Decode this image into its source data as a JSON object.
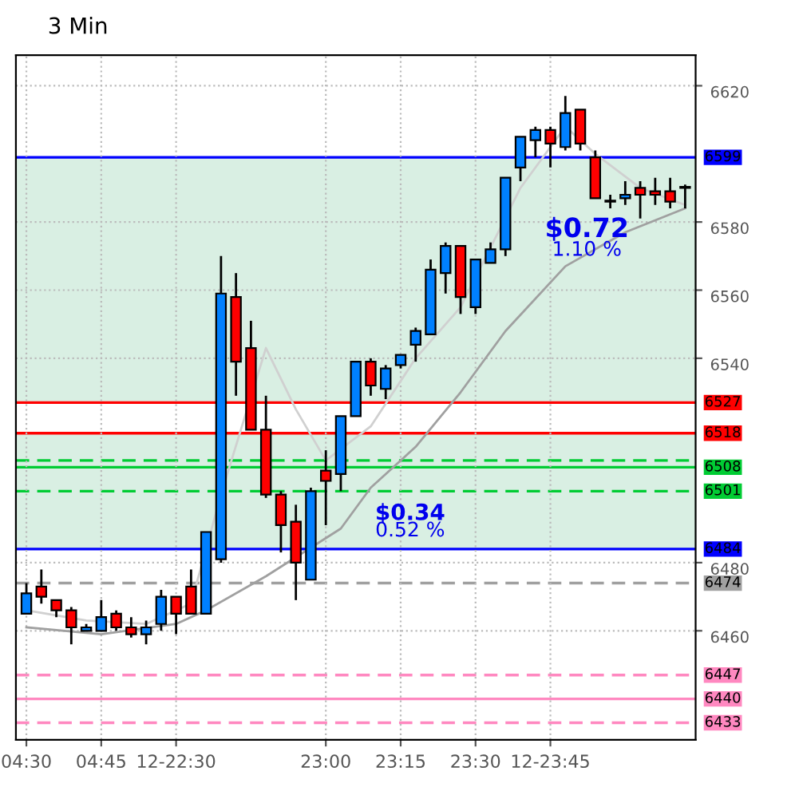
{
  "chart_data": {
    "type": "candlestick",
    "title": "3 Min",
    "categories": [
      "04:30",
      null,
      null,
      null,
      null,
      "04:45",
      null,
      null,
      null,
      null,
      "12-22:30",
      null,
      null,
      null,
      null,
      null,
      null,
      null,
      null,
      null,
      "23:00",
      null,
      null,
      null,
      null,
      "23:15",
      null,
      null,
      null,
      null,
      "23:30",
      null,
      null,
      null,
      null,
      "12-23:45",
      null,
      null,
      null,
      null,
      null,
      null,
      null,
      null,
      null
    ],
    "ohlc": [
      [
        6465,
        6474,
        6465,
        6471
      ],
      [
        6473,
        6478,
        6468,
        6470
      ],
      [
        6469,
        6469,
        6464,
        6466
      ],
      [
        6466,
        6467,
        6456,
        6461
      ],
      [
        6460,
        6462,
        6460,
        6461
      ],
      [
        6460,
        6469,
        6460,
        6464
      ],
      [
        6465,
        6466,
        6460,
        6461
      ],
      [
        6461,
        6464,
        6458,
        6459
      ],
      [
        6459,
        6463,
        6456,
        6461
      ],
      [
        6462,
        6472,
        6460,
        6470
      ],
      [
        6470,
        6470,
        6459,
        6465
      ],
      [
        6473,
        6478,
        6465,
        6465
      ],
      [
        6465,
        6489,
        6465,
        6489
      ],
      [
        6481,
        6570,
        6480,
        6559
      ],
      [
        6558,
        6565,
        6529,
        6539
      ],
      [
        6543,
        6551,
        6519,
        6519
      ],
      [
        6519,
        6529,
        6499,
        6500
      ],
      [
        6500,
        6501,
        6483,
        6491
      ],
      [
        6492,
        6497,
        6469,
        6480
      ],
      [
        6475,
        6502,
        6475,
        6501
      ],
      [
        6507,
        6513,
        6491,
        6504
      ],
      [
        6506,
        6523,
        6501,
        6523
      ],
      [
        6523,
        6539,
        6523,
        6539
      ],
      [
        6539,
        6540,
        6529,
        6532
      ],
      [
        6531,
        6538,
        6528,
        6537
      ],
      [
        6538,
        6541,
        6537,
        6541
      ],
      [
        6544,
        6549,
        6539,
        6548
      ],
      [
        6547,
        6569,
        6547,
        6566
      ],
      [
        6565,
        6574,
        6559,
        6573
      ],
      [
        6573,
        6573,
        6553,
        6558
      ],
      [
        6555,
        6569,
        6553,
        6569
      ],
      [
        6568,
        6574,
        6568,
        6572
      ],
      [
        6572,
        6593,
        6570,
        6593
      ],
      [
        6596,
        6605,
        6592,
        6605
      ],
      [
        6604,
        6608,
        6599,
        6607
      ],
      [
        6607,
        6608,
        6596,
        6603
      ],
      [
        6602,
        6617,
        6601,
        6612
      ],
      [
        6613,
        6613,
        6601,
        6603
      ],
      [
        6599,
        6601,
        6587,
        6587
      ],
      [
        6586,
        6588,
        6584,
        6586
      ],
      [
        6587,
        6592,
        6585,
        6588
      ],
      [
        6590,
        6592,
        6581,
        6588
      ],
      [
        6589,
        6593,
        6585,
        6588
      ],
      [
        6589,
        6593,
        6584,
        6586
      ],
      [
        6590,
        6591,
        6584,
        6590
      ]
    ],
    "colors": [
      "#0080ff",
      "#ff0000",
      "#ff0000",
      "#ff0000",
      "#0080ff",
      "#0080ff",
      "#ff0000",
      "#ff0000",
      "#0080ff",
      "#0080ff",
      "#ff0000",
      "#ff0000",
      "#0080ff",
      "#0080ff",
      "#ff0000",
      "#ff0000",
      "#ff0000",
      "#ff0000",
      "#ff0000",
      "#0080ff",
      "#ff0000",
      "#0080ff",
      "#0080ff",
      "#ff0000",
      "#0080ff",
      "#0080ff",
      "#0080ff",
      "#0080ff",
      "#0080ff",
      "#ff0000",
      "#0080ff",
      "#0080ff",
      "#0080ff",
      "#0080ff",
      "#0080ff",
      "#ff0000",
      "#0080ff",
      "#ff0000",
      "#ff0000",
      "#0080ff",
      "#0080ff",
      "#ff0000",
      "#ff0000",
      "#ff0000",
      "#0080ff"
    ],
    "series": [
      {
        "type": "line",
        "color": "#d0d0d0",
        "values": [
          6466,
          null,
          null,
          null,
          6463,
          null,
          null,
          null,
          6462,
          null,
          null,
          6468,
          null,
          6500,
          null,
          null,
          6543,
          null,
          6525,
          null,
          6510,
          null,
          null,
          6520,
          null,
          null,
          6540,
          null,
          null,
          6555,
          null,
          null,
          null,
          6590,
          null,
          null,
          6608,
          null,
          6600,
          null,
          null,
          6590,
          null,
          null,
          6585
        ]
      },
      {
        "type": "line",
        "color": "#a0a0a0",
        "values": [
          6461,
          null,
          null,
          null,
          null,
          6459,
          null,
          null,
          null,
          null,
          6462,
          null,
          6466,
          null,
          null,
          null,
          6476,
          null,
          null,
          null,
          null,
          6490,
          null,
          6502,
          null,
          null,
          6514,
          null,
          null,
          6530,
          null,
          null,
          6548,
          null,
          null,
          null,
          6567,
          null,
          null,
          null,
          6577,
          null,
          null,
          null,
          6584
        ]
      }
    ],
    "ylim": [
      6428,
      6629
    ],
    "yticks": [
      6620,
      6580,
      6560,
      6540,
      6480,
      6460
    ],
    "ref_lines": [
      {
        "axis": "y",
        "value": 6599,
        "label": "6599",
        "color": "#0000ff",
        "line_style": "solid"
      },
      {
        "axis": "y",
        "value": 6527,
        "label": "6527",
        "color": "#ff0000",
        "line_style": "solid"
      },
      {
        "axis": "y",
        "value": 6518,
        "label": "6518",
        "color": "#ff0000",
        "line_style": "solid"
      },
      {
        "axis": "y",
        "value": 6510,
        "label": null,
        "color": "#00cc33",
        "line_style": "dashed"
      },
      {
        "axis": "y",
        "value": 6508,
        "label": "6508",
        "color": "#00cc33",
        "line_style": "solid"
      },
      {
        "axis": "y",
        "value": 6501,
        "label": "6501",
        "color": "#00cc33",
        "line_style": "dashed"
      },
      {
        "axis": "y",
        "value": 6484,
        "label": "6484",
        "color": "#0000ff",
        "line_style": "solid"
      },
      {
        "axis": "y",
        "value": 6474,
        "label": "6474",
        "color": "#a0a0a0",
        "line_style": "dashed"
      },
      {
        "axis": "y",
        "value": 6447,
        "label": "6447",
        "color": "#ff88c0",
        "line_style": "dashed"
      },
      {
        "axis": "y",
        "value": 6440,
        "label": "6440",
        "color": "#ff88c0",
        "line_style": "solid"
      },
      {
        "axis": "y",
        "value": 6433,
        "label": "6433",
        "color": "#ff88c0",
        "line_style": "dashed"
      }
    ],
    "bands": [
      {
        "axis": "y",
        "from": 6527,
        "to": 6599,
        "color": "#9fd8b8"
      },
      {
        "axis": "y",
        "from": 6484,
        "to": 6518,
        "color": "#9fd8b8"
      }
    ],
    "annotations": [
      "$0.72",
      "1.10 %",
      "$0.34",
      "0.52 %"
    ],
    "grid": true,
    "legend": false
  }
}
